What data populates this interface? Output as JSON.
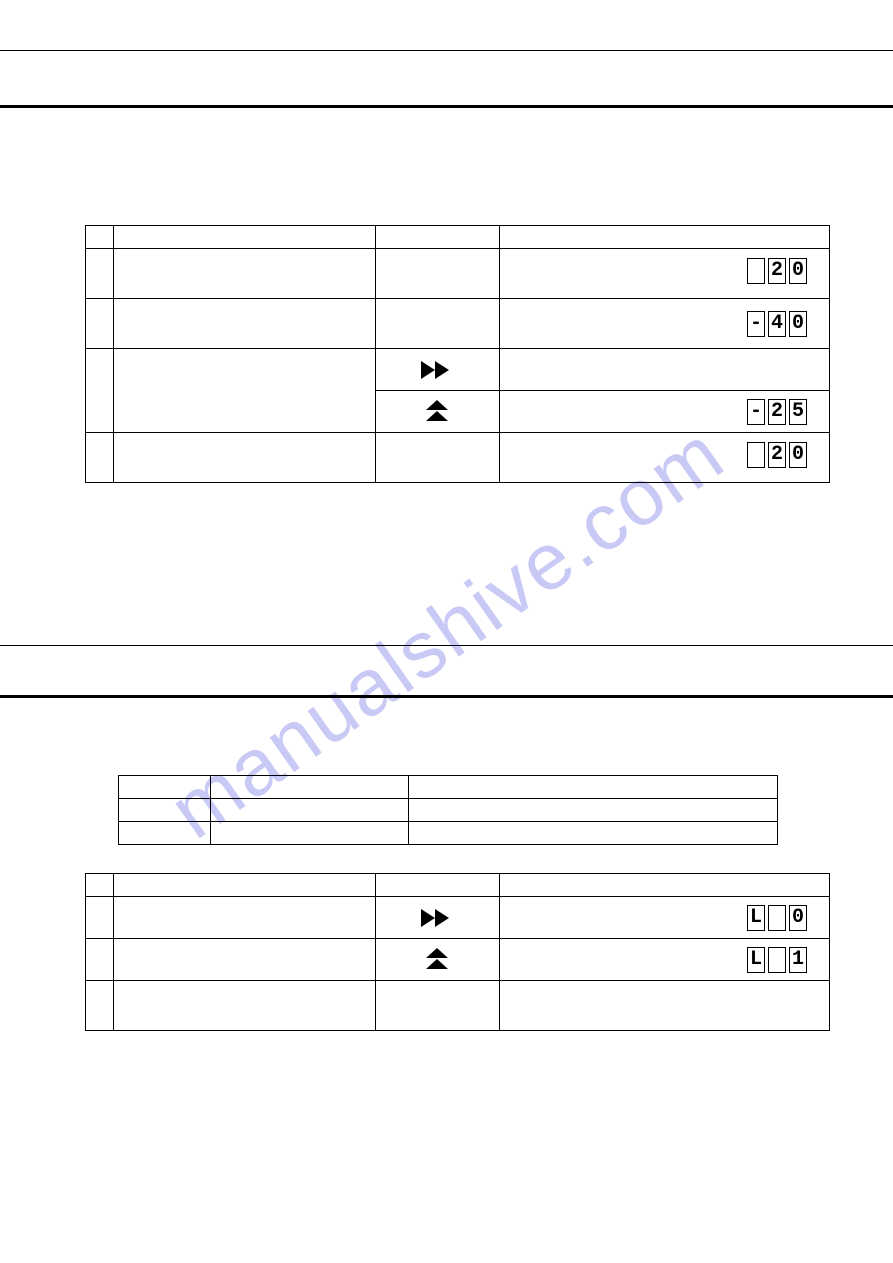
{
  "watermark": "manualshive.com",
  "table1": {
    "rows": [
      {
        "type": "head"
      },
      {
        "type": "body",
        "digits": [
          " ",
          "2",
          "0"
        ]
      },
      {
        "type": "body",
        "digits": [
          "-",
          "4",
          "0"
        ]
      },
      {
        "type": "icon",
        "icon": "fast-forward"
      },
      {
        "type": "icon-seg",
        "icon": "double-up",
        "digits": [
          "-",
          "2",
          "5"
        ]
      },
      {
        "type": "body",
        "digits": [
          " ",
          "2",
          "0"
        ]
      }
    ]
  },
  "table2": {
    "rows": 3
  },
  "table3": {
    "rows": [
      {
        "type": "head"
      },
      {
        "type": "icon-seg",
        "icon": "fast-forward",
        "digits": [
          "L",
          " ",
          "0"
        ]
      },
      {
        "type": "icon-seg",
        "icon": "double-up",
        "digits": [
          "L",
          " ",
          "1"
        ]
      },
      {
        "type": "body"
      }
    ]
  },
  "icons": {
    "fast-forward": "ff",
    "double-up": "du"
  }
}
